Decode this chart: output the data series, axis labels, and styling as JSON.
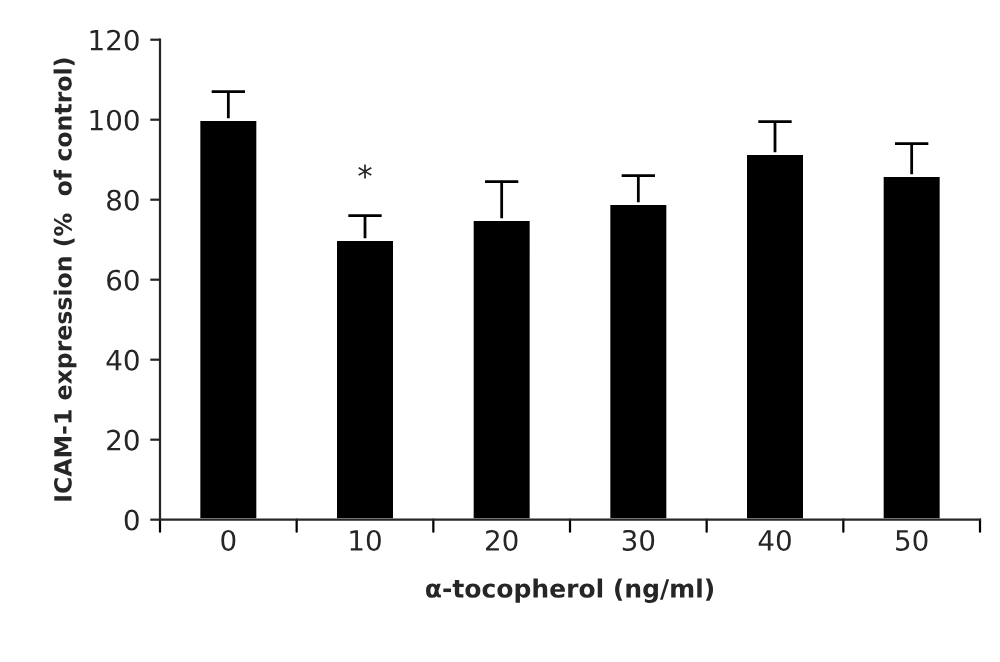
{
  "chart_data": {
    "type": "bar",
    "xlabel": "α-tocopherol (ng/ml)",
    "ylabel": "ICAM-1 expression (%  of control)",
    "categories": [
      "0",
      "10",
      "20",
      "30",
      "40",
      "50"
    ],
    "values": [
      100,
      70,
      75,
      79,
      91.5,
      86
    ],
    "errors": [
      7,
      6,
      9.5,
      7,
      8,
      8
    ],
    "color": "#000000",
    "ylim": [
      0,
      120
    ],
    "yticks": [
      0,
      20,
      40,
      60,
      80,
      100,
      120
    ],
    "grid": false,
    "annotations": [
      {
        "text": "*",
        "x": "10",
        "y": 76
      }
    ]
  }
}
